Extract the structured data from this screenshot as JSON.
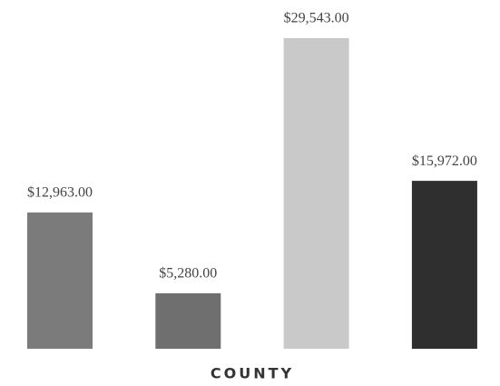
{
  "chart_data": {
    "type": "bar",
    "x_label": "COUNTY",
    "categories": [
      null,
      null,
      null,
      null
    ],
    "values": [
      12963,
      5280,
      29543,
      15972
    ],
    "value_labels": [
      "$12,963.00",
      "$5,280.00",
      "$29,543.00",
      "$15,972.00"
    ],
    "colors": [
      "#7b7b7b",
      "#6f6f6f",
      "#c9c9c9",
      "#2f2f2f"
    ]
  }
}
